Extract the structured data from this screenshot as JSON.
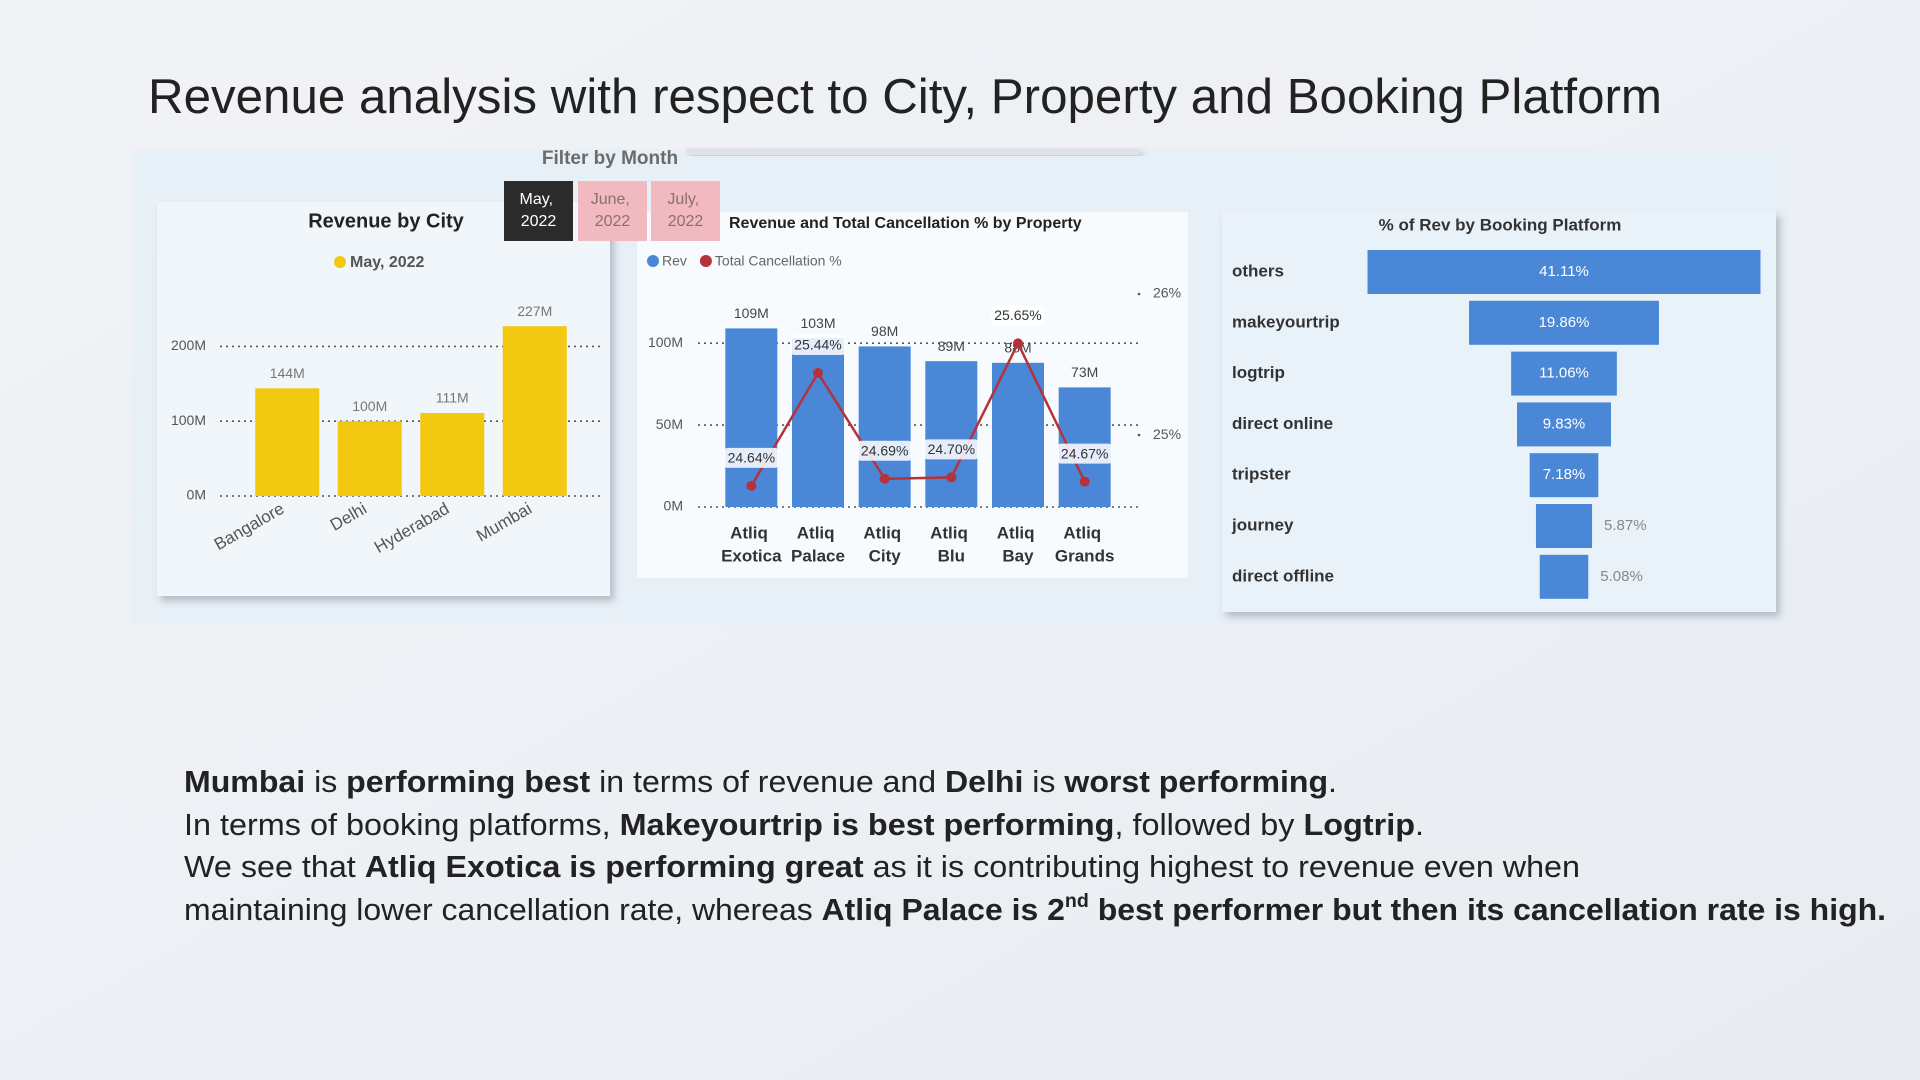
{
  "title": "Revenue analysis with respect to City, Property and Booking Platform",
  "filter": {
    "label": "Filter by Month",
    "options": [
      "May, 2022",
      "June, 2022",
      "July, 2022"
    ],
    "selected": 0
  },
  "chart_data": [
    {
      "type": "bar",
      "title": "Revenue by City",
      "categories": [
        "Bangalore",
        "Delhi",
        "Hyderabad",
        "Mumbai"
      ],
      "series": [
        {
          "name": "May, 2022",
          "color": "#f2c811",
          "values": [
            144000000,
            100000000,
            111000000,
            227000000
          ],
          "value_labels": [
            "144M",
            "100M",
            "111M",
            "227M"
          ]
        }
      ],
      "ylim": [
        0,
        250000000
      ],
      "yticks": [
        {
          "value": 0,
          "label": "0M"
        },
        {
          "value": 100000000,
          "label": "100M"
        },
        {
          "value": 200000000,
          "label": "200M"
        }
      ],
      "grid": true
    },
    {
      "type": "combo",
      "title": "Revenue and Total Cancellation % by Property",
      "categories": [
        "Atliq Exotica",
        "Atliq Palace",
        "Atliq City",
        "Atliq Blu",
        "Atliq Bay",
        "Atliq Grands"
      ],
      "series": [
        {
          "name": "Rev",
          "color": "#4a87d6",
          "values": [
            109000000,
            103000000,
            98000000,
            89000000,
            88000000,
            73000000
          ],
          "value_labels": [
            "109M",
            "103M",
            "98M",
            "89M",
            "88M",
            "73M"
          ]
        },
        {
          "name": "Total Cancellation %",
          "color": "#b5323a",
          "type": "line",
          "axis": "y2",
          "values": [
            24.64,
            25.44,
            24.69,
            24.7,
            25.65,
            24.67
          ],
          "value_labels": [
            "24.64%",
            "25.44%",
            "24.69%",
            "24.70%",
            "25.65%",
            "24.67%"
          ]
        }
      ],
      "ylim": [
        0,
        130000000
      ],
      "yticks": [
        {
          "value": 0,
          "label": "0M"
        },
        {
          "value": 50000000,
          "label": "50M"
        },
        {
          "value": 100000000,
          "label": "100M"
        }
      ],
      "y2lim": [
        24.49,
        26
      ],
      "y2ticks": [
        {
          "value": 25,
          "label": "25%"
        },
        {
          "value": 26,
          "label": "26%"
        }
      ],
      "grid": true
    },
    {
      "type": "funnel",
      "title": "% of Rev by Booking Platform",
      "categories": [
        "others",
        "makeyourtrip",
        "logtrip",
        "direct online",
        "tripster",
        "journey",
        "direct offline"
      ],
      "values": [
        41.11,
        19.86,
        11.06,
        9.83,
        7.18,
        5.87,
        5.08
      ],
      "value_labels": [
        "41.11%",
        "19.86%",
        "11.06%",
        "9.83%",
        "7.18%",
        "5.87%",
        "5.08%"
      ],
      "color": "#4a87d6"
    }
  ],
  "notes": [
    [
      {
        "text": "Mumbai",
        "bold": true
      },
      {
        "text": " is "
      },
      {
        "text": "performing best",
        "bold": true
      },
      {
        "text": " in terms of revenue and "
      },
      {
        "text": "Delhi",
        "bold": true
      },
      {
        "text": " is "
      },
      {
        "text": "worst performing",
        "bold": true
      },
      {
        "text": "."
      }
    ],
    [
      {
        "text": "In terms of booking platforms, "
      },
      {
        "text": "Makeyourtrip is best performing",
        "bold": true
      },
      {
        "text": ", followed by "
      },
      {
        "text": "Logtrip",
        "bold": true
      },
      {
        "text": "."
      }
    ],
    [
      {
        "text": "We see that "
      },
      {
        "text": "Atliq Exotica is performing great",
        "bold": true
      },
      {
        "text": " as it is contributing highest to revenue even when"
      }
    ],
    [
      {
        "text": "maintaining lower cancellation rate, whereas "
      },
      {
        "text": "Atliq Palace is 2",
        "bold": true
      },
      {
        "text": "nd",
        "bold": true,
        "sup": true
      },
      {
        "text": " best performer but then its cancellation rate is high.",
        "bold": true
      }
    ]
  ]
}
